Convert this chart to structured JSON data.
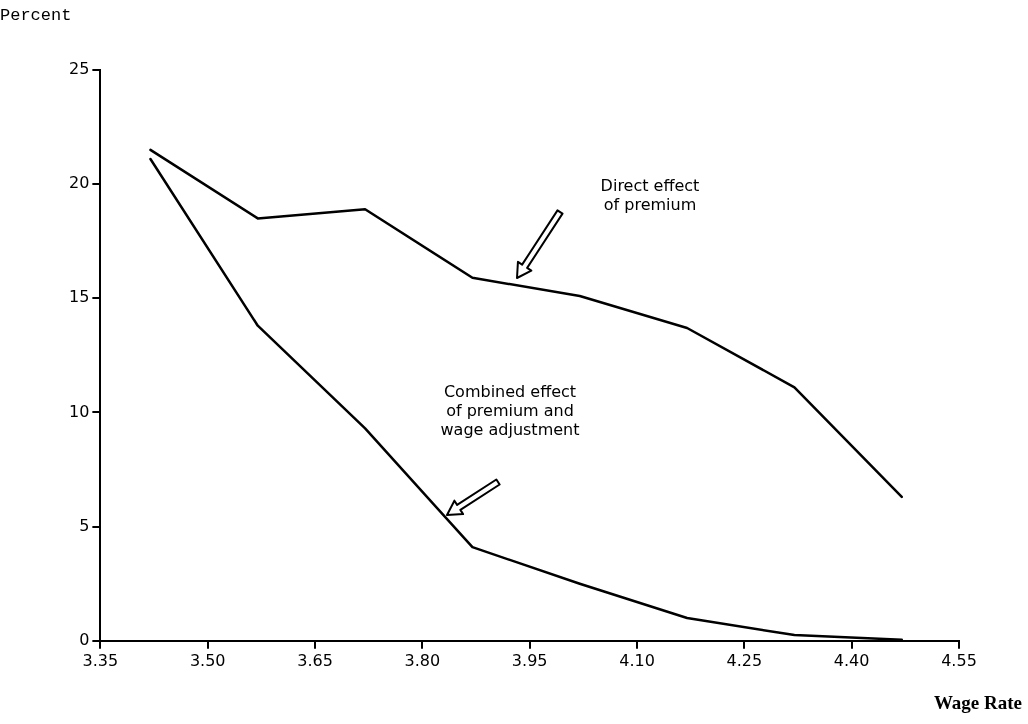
{
  "chart_data": {
    "type": "line",
    "xlabel": "Wage Rate",
    "ylabel": "Percent",
    "xlim": [
      3.35,
      4.55
    ],
    "xticks": [
      3.35,
      {
        "value": 3.5,
        "label": "3.50"
      },
      3.65,
      {
        "value": 3.8,
        "label": "3.80"
      },
      3.95,
      {
        "value": 4.1,
        "label": "4.10"
      },
      4.25,
      {
        "value": 4.4,
        "label": "4.40"
      },
      4.55
    ],
    "ylim": [
      0,
      25
    ],
    "yticks": [
      0,
      5,
      10,
      15,
      20,
      25
    ],
    "annotations": [
      "Direct effect of premium",
      "Combined effect of premium and wage adjustment"
    ],
    "grid": false,
    "legend": false,
    "marker": "none",
    "line_style": "solid",
    "series": [
      {
        "color": "#000000",
        "x": [
          3.42,
          3.57,
          3.72,
          3.87,
          4.02,
          4.17,
          4.32,
          4.47
        ],
        "values": [
          21.5,
          18.5,
          18.9,
          15.9,
          15.1,
          13.7,
          11.1,
          6.3
        ]
      },
      {
        "color": "#000000",
        "x": [
          3.42,
          3.57,
          3.72,
          3.87,
          4.02,
          4.17,
          4.32,
          4.47
        ],
        "values": [
          21.1,
          13.8,
          9.3,
          4.1,
          2.5,
          1.0,
          0.25,
          0.05
        ]
      }
    ]
  }
}
